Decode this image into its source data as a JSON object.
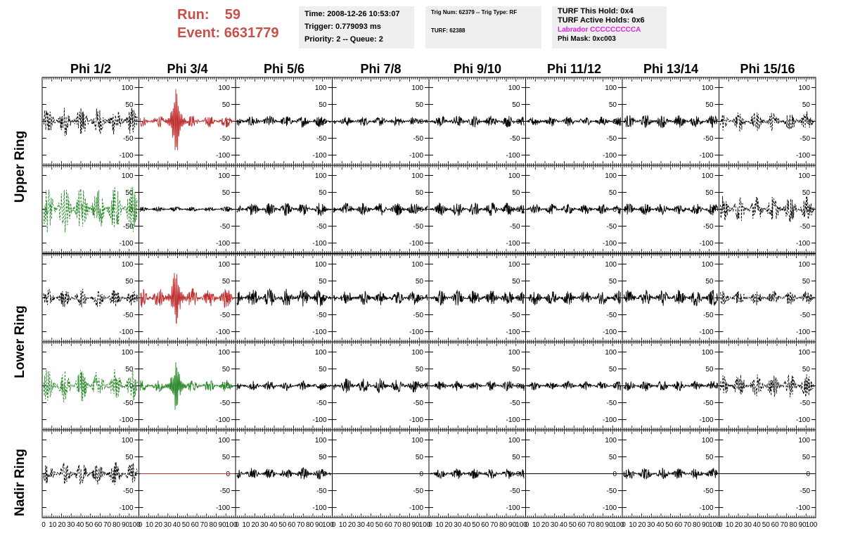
{
  "run": {
    "run_label": "Run:",
    "run_value": "59",
    "event_label": "Event:",
    "event_value": "6631779"
  },
  "time_box": {
    "time": "Time: 2008-12-26 10:53:07",
    "trigger": "Trigger: 0.779093 ms",
    "priority": "Priority: 2 -- Queue: 2"
  },
  "trig_box": {
    "trig": "Trig Num: 62379 -- Trig Type: RF",
    "turf": "TURF: 62388"
  },
  "turf_box": {
    "hold": "TURF This Hold: 0x4",
    "active": "TURF Active Holds: 0x6",
    "labrador": "Labrador CCCCCCCCCA",
    "phimask": "Phi Mask: 0xc003"
  },
  "columns": [
    "Phi 1/2",
    "Phi 3/4",
    "Phi 5/6",
    "Phi 7/8",
    "Phi 9/10",
    "Phi 11/12",
    "Phi 13/14",
    "Phi 15/16"
  ],
  "rows": [
    "Upper Ring",
    "Lower Ring",
    "Nadir Ring"
  ],
  "colors": {
    "black": "#000000",
    "red": "#c03030",
    "green": "#2a8a2a",
    "header_red": "#c8504a",
    "magenta": "#e020e0",
    "box_bg": "#efefef"
  },
  "y_ticks": [
    "100",
    "50",
    "0",
    "-50",
    "-100"
  ],
  "x_ticks": [
    "0",
    "10",
    "20",
    "30",
    "40",
    "50",
    "60",
    "70",
    "80",
    "90",
    "100"
  ],
  "chart_data": {
    "type": "line",
    "xlim": [
      0,
      100
    ],
    "ylim": [
      -130,
      130
    ],
    "panels": [
      {
        "row": 0,
        "col": 0,
        "color": "black",
        "dashed": true,
        "amp": 45,
        "burst": 0
      },
      {
        "row": 0,
        "col": 1,
        "color": "red",
        "dashed": false,
        "amp": 18,
        "burst": 120
      },
      {
        "row": 0,
        "col": 2,
        "color": "black",
        "dashed": false,
        "amp": 18,
        "burst": 0
      },
      {
        "row": 0,
        "col": 3,
        "color": "black",
        "dashed": false,
        "amp": 15,
        "burst": 0
      },
      {
        "row": 0,
        "col": 4,
        "color": "black",
        "dashed": false,
        "amp": 18,
        "burst": 0
      },
      {
        "row": 0,
        "col": 5,
        "color": "black",
        "dashed": false,
        "amp": 15,
        "burst": 0
      },
      {
        "row": 0,
        "col": 6,
        "color": "black",
        "dashed": false,
        "amp": 20,
        "burst": 0
      },
      {
        "row": 0,
        "col": 7,
        "color": "black",
        "dashed": true,
        "amp": 30,
        "burst": 0
      },
      {
        "row": 1,
        "col": 0,
        "color": "green",
        "dashed": true,
        "amp": 70,
        "burst": 0
      },
      {
        "row": 1,
        "col": 1,
        "color": "black",
        "dashed": false,
        "amp": 8,
        "burst": 0
      },
      {
        "row": 1,
        "col": 2,
        "color": "black",
        "dashed": false,
        "amp": 20,
        "burst": 0
      },
      {
        "row": 1,
        "col": 3,
        "color": "black",
        "dashed": false,
        "amp": 20,
        "burst": 0
      },
      {
        "row": 1,
        "col": 4,
        "color": "black",
        "dashed": false,
        "amp": 22,
        "burst": 0
      },
      {
        "row": 1,
        "col": 5,
        "color": "black",
        "dashed": false,
        "amp": 16,
        "burst": 0
      },
      {
        "row": 1,
        "col": 6,
        "color": "black",
        "dashed": false,
        "amp": 18,
        "burst": 0
      },
      {
        "row": 1,
        "col": 7,
        "color": "black",
        "dashed": true,
        "amp": 40,
        "burst": 0
      },
      {
        "row": 2,
        "col": 0,
        "color": "black",
        "dashed": true,
        "amp": 28,
        "burst": 0
      },
      {
        "row": 2,
        "col": 1,
        "color": "red",
        "dashed": false,
        "amp": 30,
        "burst": 95
      },
      {
        "row": 2,
        "col": 2,
        "color": "black",
        "dashed": false,
        "amp": 28,
        "burst": 0
      },
      {
        "row": 2,
        "col": 3,
        "color": "black",
        "dashed": false,
        "amp": 22,
        "burst": 0
      },
      {
        "row": 2,
        "col": 4,
        "color": "black",
        "dashed": false,
        "amp": 24,
        "burst": 0
      },
      {
        "row": 2,
        "col": 5,
        "color": "black",
        "dashed": false,
        "amp": 22,
        "burst": 0
      },
      {
        "row": 2,
        "col": 6,
        "color": "black",
        "dashed": false,
        "amp": 25,
        "burst": 0
      },
      {
        "row": 2,
        "col": 7,
        "color": "black",
        "dashed": true,
        "amp": 22,
        "burst": 0
      },
      {
        "row": 3,
        "col": 0,
        "color": "green",
        "dashed": true,
        "amp": 50,
        "burst": 0
      },
      {
        "row": 3,
        "col": 1,
        "color": "green",
        "dashed": false,
        "amp": 18,
        "burst": 85
      },
      {
        "row": 3,
        "col": 2,
        "color": "black",
        "dashed": false,
        "amp": 15,
        "burst": 0
      },
      {
        "row": 3,
        "col": 3,
        "color": "black",
        "dashed": false,
        "amp": 22,
        "burst": 0
      },
      {
        "row": 3,
        "col": 4,
        "color": "black",
        "dashed": false,
        "amp": 16,
        "burst": 0
      },
      {
        "row": 3,
        "col": 5,
        "color": "black",
        "dashed": false,
        "amp": 14,
        "burst": 0
      },
      {
        "row": 3,
        "col": 6,
        "color": "black",
        "dashed": false,
        "amp": 16,
        "burst": 0
      },
      {
        "row": 3,
        "col": 7,
        "color": "black",
        "dashed": true,
        "amp": 35,
        "burst": 0
      },
      {
        "row": 4,
        "col": 0,
        "color": "black",
        "dashed": true,
        "amp": 35,
        "burst": 0
      },
      {
        "row": 4,
        "col": 1,
        "color": "red",
        "dashed": false,
        "amp": 0,
        "burst": 0
      },
      {
        "row": 4,
        "col": 2,
        "color": "black",
        "dashed": false,
        "amp": 18,
        "burst": 0
      },
      {
        "row": 4,
        "col": 3,
        "color": "black",
        "dashed": false,
        "amp": 0,
        "burst": 0
      },
      {
        "row": 4,
        "col": 4,
        "color": "black",
        "dashed": false,
        "amp": 16,
        "burst": 0
      },
      {
        "row": 4,
        "col": 5,
        "color": "black",
        "dashed": false,
        "amp": 0,
        "burst": 0
      },
      {
        "row": 4,
        "col": 6,
        "color": "black",
        "dashed": false,
        "amp": 18,
        "burst": 0
      },
      {
        "row": 4,
        "col": 7,
        "color": "black",
        "dashed": false,
        "amp": 0,
        "burst": 0
      }
    ]
  }
}
